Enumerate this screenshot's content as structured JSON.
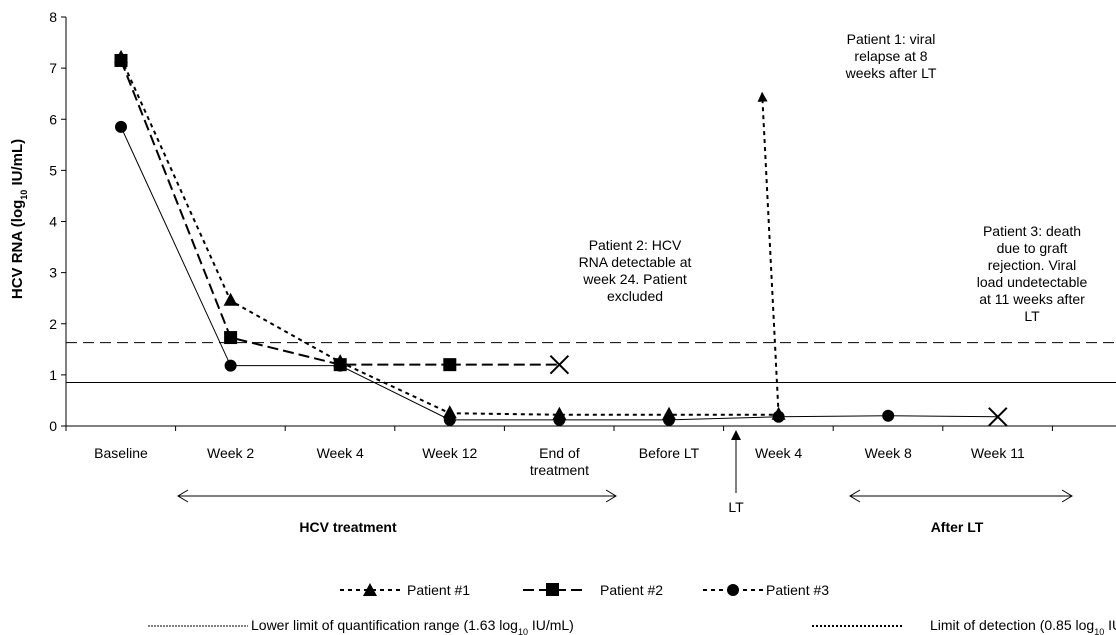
{
  "chart_data": {
    "type": "line",
    "ylabel": "HCV RNA (log10 IU/mL)",
    "ylabel_parts": {
      "main": "HCV RNA (log",
      "sub": "10",
      "tail": " IU/mL)"
    },
    "ylim": [
      0,
      8
    ],
    "yticks": [
      "0",
      "1",
      "2",
      "3",
      "4",
      "5",
      "6",
      "7",
      "8"
    ],
    "grid": false,
    "categories": [
      "Baseline",
      "Week 2",
      "Week 4",
      "Week 12",
      "End of treatment",
      "Before LT",
      "Week 4",
      "Week 8",
      "Week 11"
    ],
    "series": [
      {
        "name": "Patient #1",
        "marker": "triangle",
        "dash": "4,4",
        "points": [
          [
            0,
            7.2
          ],
          [
            1,
            2.45
          ],
          [
            2,
            1.25
          ],
          [
            3,
            0.25
          ],
          [
            4,
            0.22
          ],
          [
            5,
            0.22
          ],
          [
            6,
            0.22
          ]
        ],
        "extension": {
          "to": [
            5.85,
            6.5
          ],
          "arrow": true
        }
      },
      {
        "name": "Patient #2",
        "marker": "square",
        "dash": "11,5",
        "points": [
          [
            0,
            7.15
          ],
          [
            1,
            1.73
          ],
          [
            2,
            1.2
          ],
          [
            3,
            1.2
          ]
        ],
        "extension": {
          "to": [
            4.0,
            1.2
          ],
          "end_marker": "x"
        }
      },
      {
        "name": "Patient #3",
        "marker": "circle",
        "dash": "",
        "points": [
          [
            0,
            5.85
          ],
          [
            1,
            1.18
          ],
          [
            2,
            1.18
          ],
          [
            3,
            0.12
          ],
          [
            4,
            0.12
          ],
          [
            5,
            0.12
          ],
          [
            6,
            0.18
          ],
          [
            7,
            0.2
          ]
        ],
        "extension": {
          "to": [
            8.0,
            0.18
          ],
          "end_marker": "x"
        }
      }
    ],
    "reference_lines": [
      {
        "name": "Lower limit of quantification range",
        "value": 1.63,
        "style": "dashed"
      },
      {
        "name": "Limit of detection",
        "value": 0.85,
        "style": "solid"
      }
    ],
    "annotations": {
      "patient1": [
        "Patient 1: viral",
        "relapse at 8",
        "weeks after LT"
      ],
      "patient2": [
        "Patient 2: HCV",
        "RNA detectable at",
        "week 24. Patient",
        "excluded"
      ],
      "patient3": [
        "Patient 3: death",
        "due to graft",
        "rejection. Viral",
        "load undetectable",
        "at 11 weeks after",
        "LT"
      ]
    },
    "lt_marker": "LT",
    "sections": {
      "treatment": "HCV treatment",
      "after": "After LT"
    },
    "legend": {
      "p1": "Patient #1",
      "p2": "Patient #2",
      "p3": "Patient #3",
      "lloq": {
        "main": "Lower limit of quantification range (1.63 log",
        "sub": "10",
        "tail": " IU/mL)"
      },
      "lod": {
        "main": "Limit of detection (0.85 log",
        "sub": "10",
        "tail": " IU/mL)"
      }
    }
  }
}
